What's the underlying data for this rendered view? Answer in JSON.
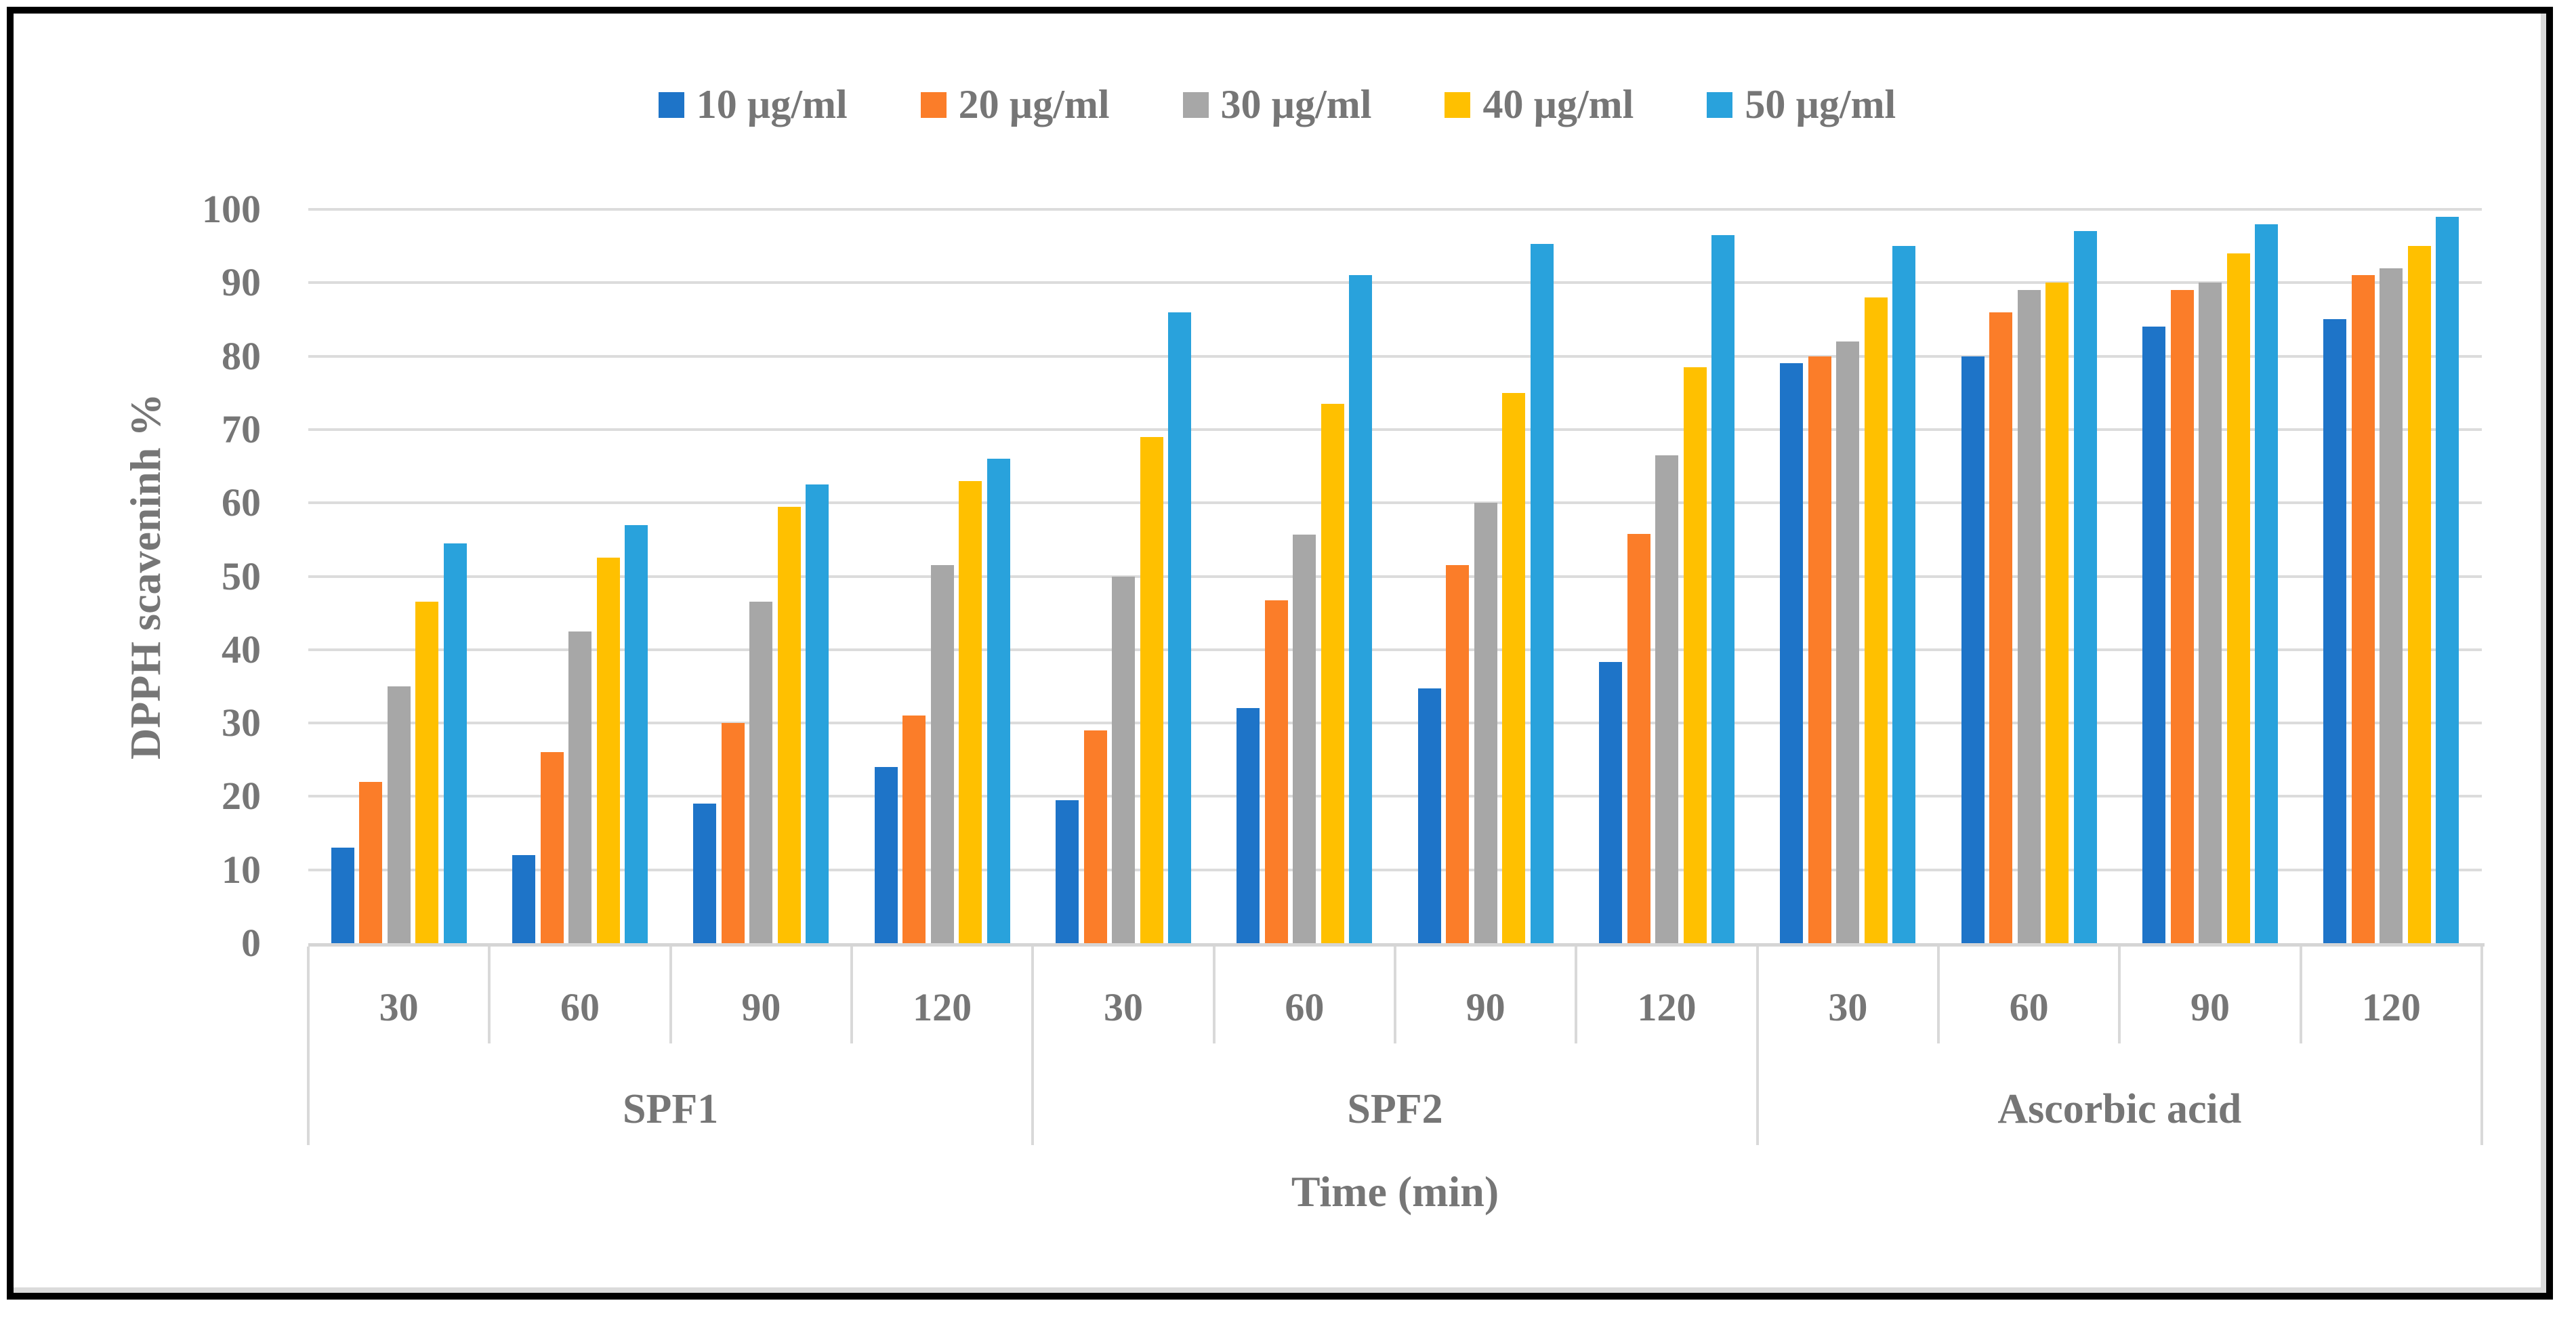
{
  "figure": {
    "border_color": "#000000",
    "inner_border_color": "#DBDBDB",
    "background": "#ffffff",
    "text_color": "#767676",
    "gridline_color": "#DCDCDC",
    "axis_line_color": "#D5D5D5"
  },
  "chart_data": {
    "type": "bar",
    "title": "",
    "ylabel": "DPPH scaveninh %",
    "xlabel": "Time (min)",
    "ylim": [
      0,
      100
    ],
    "yticks": [
      0,
      10,
      20,
      30,
      40,
      50,
      60,
      70,
      80,
      90,
      100
    ],
    "grid": true,
    "legend_position": "top-center",
    "groups": [
      "SPF1",
      "SPF2",
      "Ascorbic acid"
    ],
    "categories_per_group": [
      "30",
      "60",
      "90",
      "120"
    ],
    "series": [
      {
        "name": "10 µg/ml",
        "color": "#1E74C8",
        "values": [
          13,
          12,
          19,
          24,
          19.5,
          32,
          34.7,
          38.3,
          79,
          80,
          84,
          85
        ]
      },
      {
        "name": "20 µg/ml",
        "color": "#FB7D29",
        "values": [
          22,
          26,
          30,
          31,
          29,
          46.7,
          51.5,
          55.8,
          80,
          86,
          89,
          91
        ]
      },
      {
        "name": "30 µg/ml",
        "color": "#A7A7A7",
        "values": [
          35,
          42.5,
          46.5,
          51.5,
          50,
          55.7,
          60,
          66.5,
          82,
          89,
          90,
          92
        ]
      },
      {
        "name": "40 µg/ml",
        "color": "#FFC000",
        "values": [
          46.5,
          52.5,
          59.5,
          63,
          69,
          73.5,
          75,
          78.5,
          88,
          90,
          94,
          95
        ]
      },
      {
        "name": "50 µg/ml",
        "color": "#29A2DC",
        "values": [
          54.5,
          57,
          62.5,
          66,
          86,
          91,
          95.3,
          96.5,
          95,
          97,
          98,
          99
        ]
      }
    ]
  }
}
